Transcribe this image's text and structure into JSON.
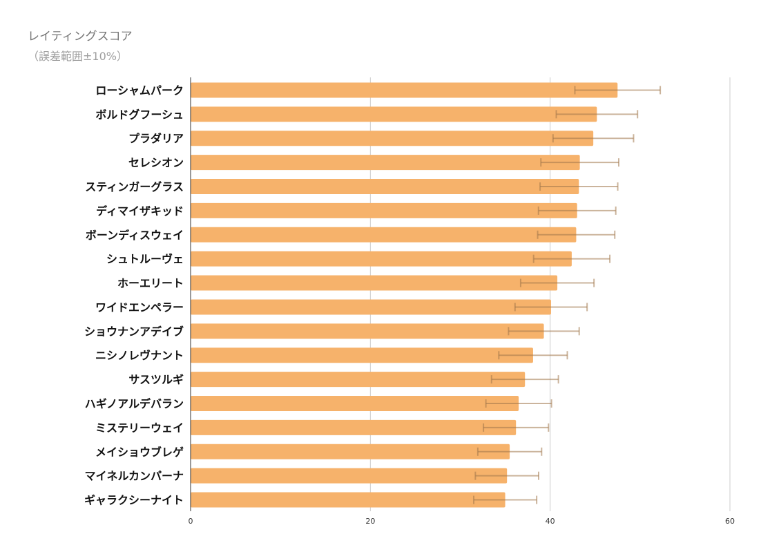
{
  "chart_data": {
    "type": "bar",
    "orientation": "horizontal",
    "title": "レイティングスコア",
    "subtitle": "（誤差範囲±10%）",
    "categories": [
      "ローシャムパーク",
      "ボルドグフーシュ",
      "プラダリア",
      "セレシオン",
      "スティンガーグラス",
      "ディマイザキッド",
      "ボーンディスウェイ",
      "シュトルーヴェ",
      "ホーエリート",
      "ワイドエンペラー",
      "ショウナンアデイブ",
      "ニシノレヴナント",
      "サスツルギ",
      "ハギノアルデバラン",
      "ミステリーウェイ",
      "メイショウブレゲ",
      "マイネルカンパーナ",
      "ギャラクシーナイト"
    ],
    "values": [
      47.5,
      45.2,
      44.8,
      43.3,
      43.2,
      43.0,
      42.9,
      42.4,
      40.8,
      40.1,
      39.3,
      38.1,
      37.2,
      36.5,
      36.2,
      35.5,
      35.2,
      35.0
    ],
    "error_percent": 10,
    "xlim": [
      0,
      60
    ],
    "xticks": [
      0,
      20,
      40,
      60
    ],
    "grid": true,
    "bar_color": "#f6b26b",
    "error_color": "#a0764a"
  }
}
